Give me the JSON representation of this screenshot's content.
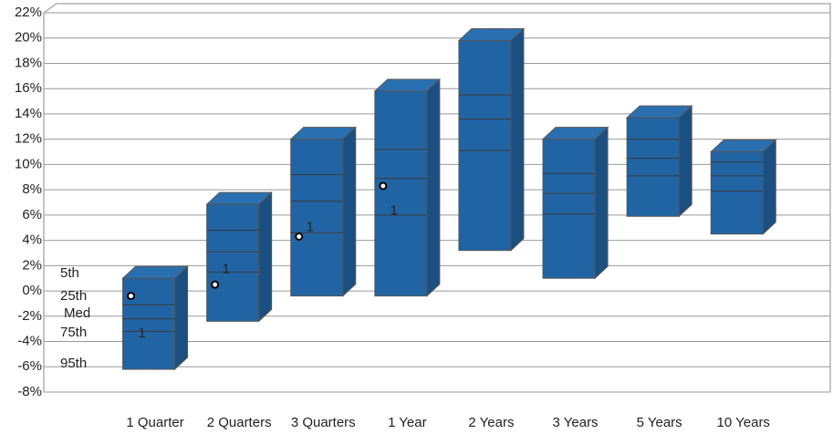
{
  "chart_data": {
    "type": "floating-box",
    "categories": [
      "1 Quarter",
      "2 Quarters",
      "3 Quarters",
      "1 Year",
      "2 Years",
      "3 Years",
      "5 Years",
      "10 Years"
    ],
    "series": [
      {
        "name": "5th",
        "values": [
          1.0,
          6.85,
          12.0,
          15.8,
          19.8,
          12.0,
          13.7,
          11.0
        ]
      },
      {
        "name": "25th",
        "values": [
          -1.1,
          4.8,
          9.2,
          11.2,
          15.5,
          9.3,
          12.0,
          10.2
        ]
      },
      {
        "name": "Med",
        "values": [
          -2.2,
          3.1,
          7.1,
          8.9,
          13.6,
          7.7,
          10.5,
          9.1
        ]
      },
      {
        "name": "75th",
        "values": [
          -3.2,
          1.5,
          4.6,
          6.0,
          11.1,
          6.1,
          9.1,
          7.9
        ]
      },
      {
        "name": "95th",
        "values": [
          -6.2,
          -2.4,
          -0.4,
          -0.4,
          3.2,
          1.0,
          5.9,
          4.5
        ]
      }
    ],
    "markers": {
      "circle_values": [
        -0.4,
        0.5,
        4.3,
        8.3,
        null,
        null,
        null,
        null
      ],
      "label_text": "1",
      "label_values": [
        -3.4,
        1.7,
        5.0,
        6.3,
        null,
        null,
        null,
        null
      ]
    },
    "color": "#2164a4",
    "ylim": [
      -8,
      22
    ],
    "yticks": [
      {
        "value": -8,
        "label": "-8%"
      },
      {
        "value": -6,
        "label": "-6%"
      },
      {
        "value": -4,
        "label": "-4%"
      },
      {
        "value": -2,
        "label": "-2%"
      },
      {
        "value": 0,
        "label": "0%"
      },
      {
        "value": 2,
        "label": "2%"
      },
      {
        "value": 4,
        "label": "4%"
      },
      {
        "value": 6,
        "label": "6%"
      },
      {
        "value": 8,
        "label": "8%"
      },
      {
        "value": 10,
        "label": "10%"
      },
      {
        "value": 12,
        "label": "12%"
      },
      {
        "value": 14,
        "label": "14%"
      },
      {
        "value": 16,
        "label": "16%"
      },
      {
        "value": 18,
        "label": "18%"
      },
      {
        "value": 20,
        "label": "20%"
      },
      {
        "value": 22,
        "label": "22%"
      }
    ],
    "grid": true
  }
}
